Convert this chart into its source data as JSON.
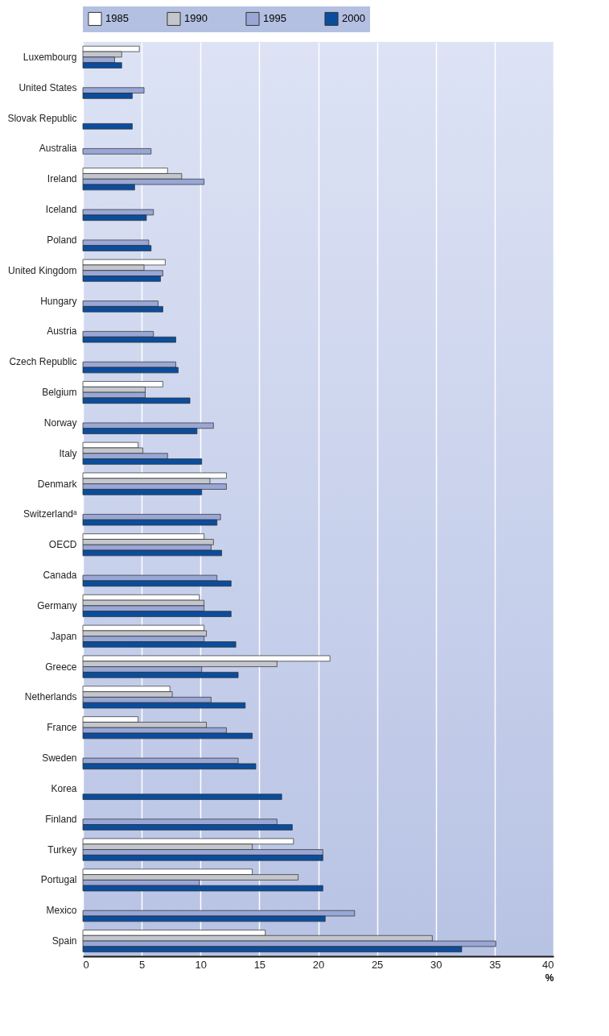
{
  "chart_data": {
    "type": "bar",
    "orientation": "horizontal",
    "xlabel": "%",
    "categories": [
      "Luxembourg",
      "United States",
      "Slovak Republic",
      "Australia",
      "Ireland",
      "Iceland",
      "Poland",
      "United Kingdom",
      "Hungary",
      "Austria",
      "Czech Republic",
      "Belgium",
      "Norway",
      "Italy",
      "Denmark",
      "Switzerlandᵃ",
      "OECD",
      "Canada",
      "Germany",
      "Japan",
      "Greece",
      "Netherlands",
      "France",
      "Sweden",
      "Korea",
      "Finland",
      "Turkey",
      "Portugal",
      "Mexico",
      "Spain"
    ],
    "series": [
      {
        "name": "1985",
        "color": "#ffffff",
        "values": [
          4.8,
          null,
          null,
          null,
          7.2,
          null,
          null,
          7.0,
          null,
          null,
          null,
          6.8,
          null,
          4.7,
          12.2,
          null,
          10.3,
          null,
          9.9,
          10.3,
          21.0,
          7.4,
          4.7,
          null,
          null,
          null,
          17.9,
          14.4,
          null,
          15.5
        ]
      },
      {
        "name": "1990",
        "color": "#c3c6cc",
        "values": [
          3.3,
          null,
          null,
          null,
          8.4,
          null,
          null,
          5.2,
          null,
          null,
          null,
          5.3,
          null,
          5.1,
          10.8,
          null,
          11.1,
          null,
          10.3,
          10.5,
          16.5,
          7.6,
          10.5,
          null,
          null,
          null,
          14.4,
          18.3,
          null,
          29.7
        ]
      },
      {
        "name": "1995",
        "color": "#99a7d6",
        "values": [
          2.7,
          5.2,
          null,
          5.8,
          10.3,
          6.0,
          5.6,
          6.8,
          6.4,
          6.0,
          7.9,
          5.3,
          11.1,
          7.2,
          12.2,
          11.7,
          10.9,
          11.4,
          10.3,
          10.3,
          10.1,
          10.9,
          12.2,
          13.2,
          null,
          16.5,
          20.4,
          9.9,
          23.1,
          35.1
        ]
      },
      {
        "name": "2000",
        "color": "#0b4d9c",
        "values": [
          3.3,
          4.2,
          4.2,
          null,
          4.4,
          5.4,
          5.8,
          6.6,
          6.8,
          7.9,
          8.1,
          9.1,
          9.7,
          10.1,
          10.1,
          11.4,
          11.8,
          12.6,
          12.6,
          13.0,
          13.2,
          13.8,
          14.4,
          14.7,
          16.9,
          17.8,
          20.4,
          20.4,
          20.6,
          32.2
        ]
      }
    ],
    "xlim": [
      0,
      40
    ],
    "xticks": [
      0,
      5,
      10,
      15,
      20,
      25,
      30,
      35,
      40
    ],
    "grid": "x",
    "legend": "top"
  }
}
